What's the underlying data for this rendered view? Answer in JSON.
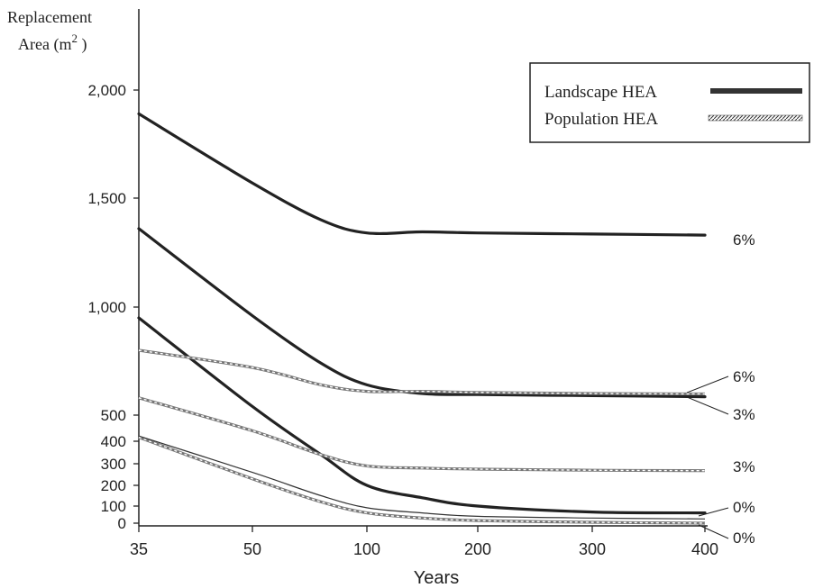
{
  "chart_data": {
    "type": "line",
    "ylabel_line1": "Replacement",
    "ylabel_line2": "Area (m",
    "ylabel_sup": "2",
    "ylabel_close": " )",
    "xlabel": "Years",
    "x_ticks": [
      {
        "value": 35,
        "label": "35"
      },
      {
        "value": 50,
        "label": "50"
      },
      {
        "value": 100,
        "label": "100"
      },
      {
        "value": 200,
        "label": "200"
      },
      {
        "value": 300,
        "label": "300"
      },
      {
        "value": 400,
        "label": "400"
      }
    ],
    "y_ticks": [
      {
        "value": 0,
        "label": "0"
      },
      {
        "value": 100,
        "label": "100"
      },
      {
        "value": 200,
        "label": "200"
      },
      {
        "value": 300,
        "label": "300"
      },
      {
        "value": 400,
        "label": "400"
      },
      {
        "value": 500,
        "label": "500"
      },
      {
        "value": 1000,
        "label": "1,000"
      },
      {
        "value": 1500,
        "label": "1,500"
      },
      {
        "value": 2000,
        "label": "2,000"
      }
    ],
    "ylim": [
      0,
      2000
    ],
    "grid": false,
    "legend_position": "top-right",
    "legend": [
      {
        "label": "Landscape HEA",
        "style": "solid"
      },
      {
        "label": "Population HEA",
        "style": "hatched"
      }
    ],
    "series": [
      {
        "group": "Landscape HEA",
        "rate": "6%",
        "x": [
          35,
          50,
          80,
          100,
          150,
          200,
          300,
          400
        ],
        "y": [
          1890,
          1570,
          1400,
          1340,
          1345,
          1340,
          1335,
          1330
        ]
      },
      {
        "group": "Landscape HEA",
        "rate": "3%",
        "x": [
          35,
          50,
          80,
          100,
          150,
          200,
          300,
          400
        ],
        "y": [
          1360,
          960,
          740,
          640,
          600,
          595,
          590,
          585
        ]
      },
      {
        "group": "Landscape HEA",
        "rate": "0%",
        "x": [
          35,
          50,
          80,
          100,
          150,
          200,
          300,
          400
        ],
        "y": [
          950,
          540,
          340,
          200,
          140,
          100,
          65,
          60
        ]
      },
      {
        "group": "Population HEA",
        "rate": "6%",
        "x": [
          35,
          50,
          80,
          100,
          150,
          200,
          300,
          400
        ],
        "y": [
          800,
          720,
          640,
          610,
          610,
          605,
          600,
          598
        ]
      },
      {
        "group": "Population HEA",
        "rate": "3%",
        "x": [
          35,
          50,
          80,
          100,
          150,
          200,
          300,
          400
        ],
        "y": [
          580,
          440,
          340,
          290,
          280,
          275,
          270,
          268
        ]
      },
      {
        "group": "Population HEA",
        "rate": "0%",
        "x": [
          35,
          50,
          80,
          100,
          150,
          200,
          300,
          400
        ],
        "y": [
          415,
          230,
          120,
          60,
          30,
          15,
          5,
          0
        ]
      },
      {
        "group": "Unlabeled",
        "rate": "",
        "x": [
          35,
          50,
          80,
          100,
          150,
          200,
          300,
          400
        ],
        "y": [
          420,
          260,
          150,
          90,
          60,
          40,
          30,
          25
        ]
      }
    ],
    "series_labels": [
      {
        "text": "6%",
        "for": "Landscape HEA 6%"
      },
      {
        "text": "6%",
        "for": "Population HEA 6%"
      },
      {
        "text": "3%",
        "for": "Landscape HEA 3%"
      },
      {
        "text": "3%",
        "for": "Population HEA 3%"
      },
      {
        "text": "0%",
        "for": "Landscape HEA 0%"
      },
      {
        "text": "0%",
        "for": "Population HEA 0%"
      }
    ]
  }
}
